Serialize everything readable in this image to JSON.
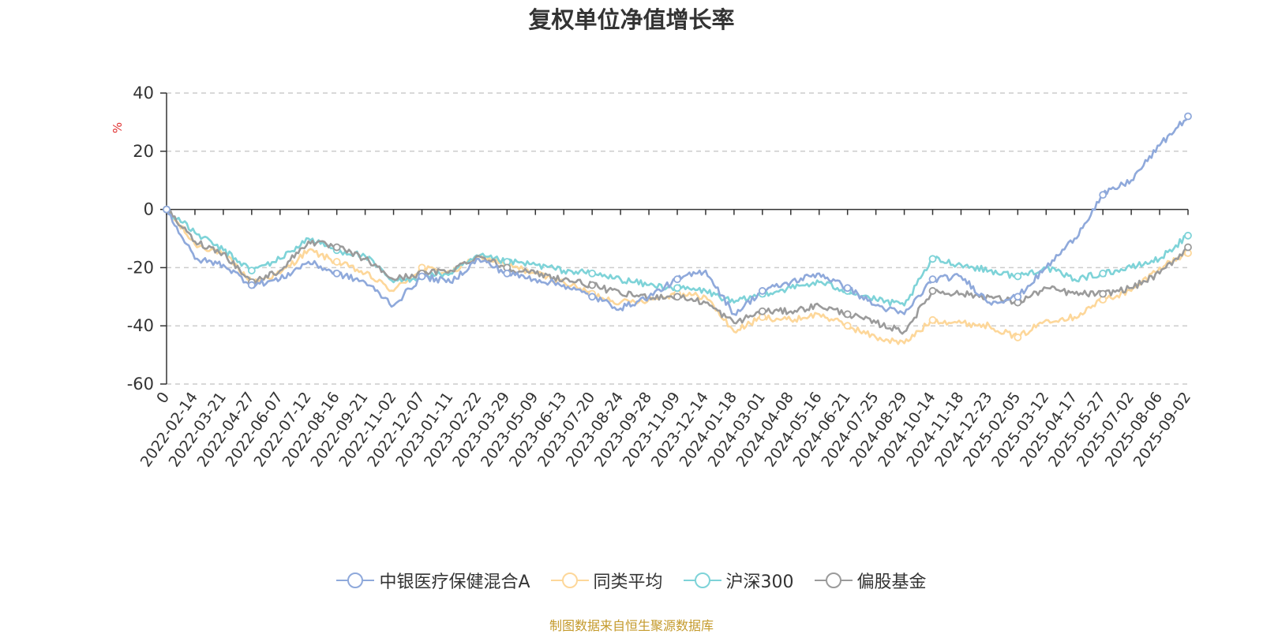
{
  "chart_data": {
    "type": "line",
    "title": "复权单位净值增长率",
    "ylabel": "%",
    "ylim": [
      -60,
      40
    ],
    "yticks": [
      40,
      20,
      0,
      -20,
      -40,
      -60
    ],
    "grid": true,
    "legend_position": "bottom",
    "x_ticks": [
      "0",
      "2022-02-14",
      "2022-03-21",
      "2022-04-27",
      "2022-06-07",
      "2022-07-12",
      "2022-08-16",
      "2022-09-21",
      "2022-11-02",
      "2022-12-07",
      "2023-01-11",
      "2023-02-22",
      "2023-03-29",
      "2023-05-09",
      "2023-06-13",
      "2023-07-20",
      "2023-08-24",
      "2023-09-28",
      "2023-11-09",
      "2023-12-14",
      "2024-01-18",
      "2024-03-01",
      "2024-04-08",
      "2024-05-16",
      "2024-06-21",
      "2024-07-25",
      "2024-08-29",
      "2024-10-14",
      "2024-11-18",
      "2024-12-23",
      "2025-02-05",
      "2025-03-12",
      "2025-04-17",
      "2025-05-27",
      "2025-07-02",
      "2025-08-06",
      "2025-09-02"
    ],
    "series": [
      {
        "name": "中银医疗保健混合A",
        "color": "#8fa9db",
        "values": [
          0,
          -17,
          -19,
          -26,
          -24,
          -18,
          -22,
          -25,
          -33,
          -23,
          -25,
          -17,
          -22,
          -24,
          -26,
          -30,
          -34,
          -30,
          -24,
          -21,
          -36,
          -28,
          -25,
          -22,
          -27,
          -33,
          -36,
          -24,
          -23,
          -32,
          -30,
          -20,
          -10,
          5,
          10,
          22,
          32
        ]
      },
      {
        "name": "同类平均",
        "color": "#fdd79a",
        "values": [
          0,
          -12,
          -15,
          -25,
          -22,
          -14,
          -18,
          -22,
          -28,
          -20,
          -22,
          -16,
          -19,
          -22,
          -25,
          -29,
          -32,
          -31,
          -29,
          -30,
          -42,
          -37,
          -38,
          -36,
          -40,
          -44,
          -46,
          -38,
          -39,
          -40,
          -44,
          -38,
          -37,
          -31,
          -28,
          -20,
          -15
        ]
      },
      {
        "name": "沪深300",
        "color": "#7ed3d8",
        "values": [
          0,
          -8,
          -14,
          -21,
          -17,
          -10,
          -14,
          -16,
          -25,
          -23,
          -22,
          -16,
          -18,
          -19,
          -21,
          -22,
          -24,
          -26,
          -27,
          -28,
          -32,
          -29,
          -27,
          -25,
          -28,
          -31,
          -33,
          -17,
          -19,
          -21,
          -23,
          -20,
          -24,
          -22,
          -20,
          -17,
          -9
        ]
      },
      {
        "name": "偏股基金",
        "color": "#9b9b9b",
        "values": [
          0,
          -11,
          -15,
          -25,
          -21,
          -11,
          -13,
          -17,
          -24,
          -22,
          -21,
          -16,
          -20,
          -22,
          -24,
          -26,
          -29,
          -30,
          -30,
          -32,
          -39,
          -35,
          -35,
          -33,
          -36,
          -39,
          -42,
          -28,
          -29,
          -30,
          -32,
          -27,
          -29,
          -29,
          -27,
          -22,
          -13
        ]
      }
    ]
  },
  "legend_labels": [
    "中银医疗保健混合A",
    "同类平均",
    "沪深300",
    "偏股基金"
  ],
  "source_note": "制图数据来自恒生聚源数据库"
}
